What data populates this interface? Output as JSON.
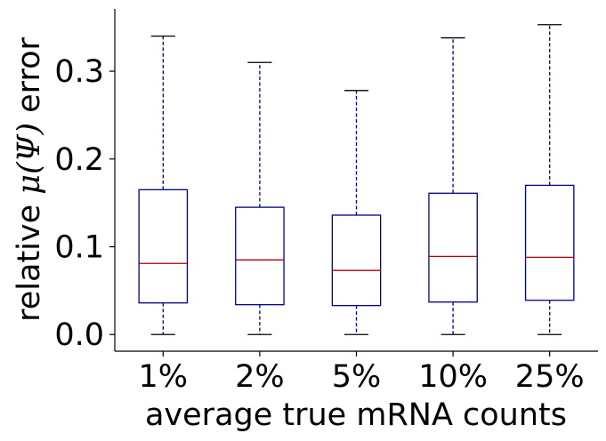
{
  "chart_data": {
    "type": "box",
    "title": "",
    "xlabel": "average true mRNA counts",
    "ylabel_prefix": "relative ",
    "ylabel_math": "μ(Ψ)",
    "ylabel_suffix": " error",
    "categories": [
      "1%",
      "2%",
      "5%",
      "10%",
      "25%"
    ],
    "boxes": [
      {
        "min": 0.0,
        "q1": 0.036,
        "median": 0.081,
        "q3": 0.165,
        "max": 0.34
      },
      {
        "min": 0.0,
        "q1": 0.034,
        "median": 0.085,
        "q3": 0.145,
        "max": 0.31
      },
      {
        "min": 0.0,
        "q1": 0.033,
        "median": 0.073,
        "q3": 0.136,
        "max": 0.278
      },
      {
        "min": 0.0,
        "q1": 0.037,
        "median": 0.089,
        "q3": 0.161,
        "max": 0.338
      },
      {
        "min": 0.0,
        "q1": 0.039,
        "median": 0.088,
        "q3": 0.17,
        "max": 0.353
      }
    ],
    "yticks": [
      "0.0",
      "0.1",
      "0.2",
      "0.3"
    ],
    "ytick_values": [
      0.0,
      0.1,
      0.2,
      0.3
    ],
    "ylim": [
      -0.019,
      0.371
    ],
    "grid": false,
    "colors": {
      "box": "#00008b",
      "whisker": "#00008b",
      "median": "#b30000",
      "cap": "#000000"
    }
  }
}
